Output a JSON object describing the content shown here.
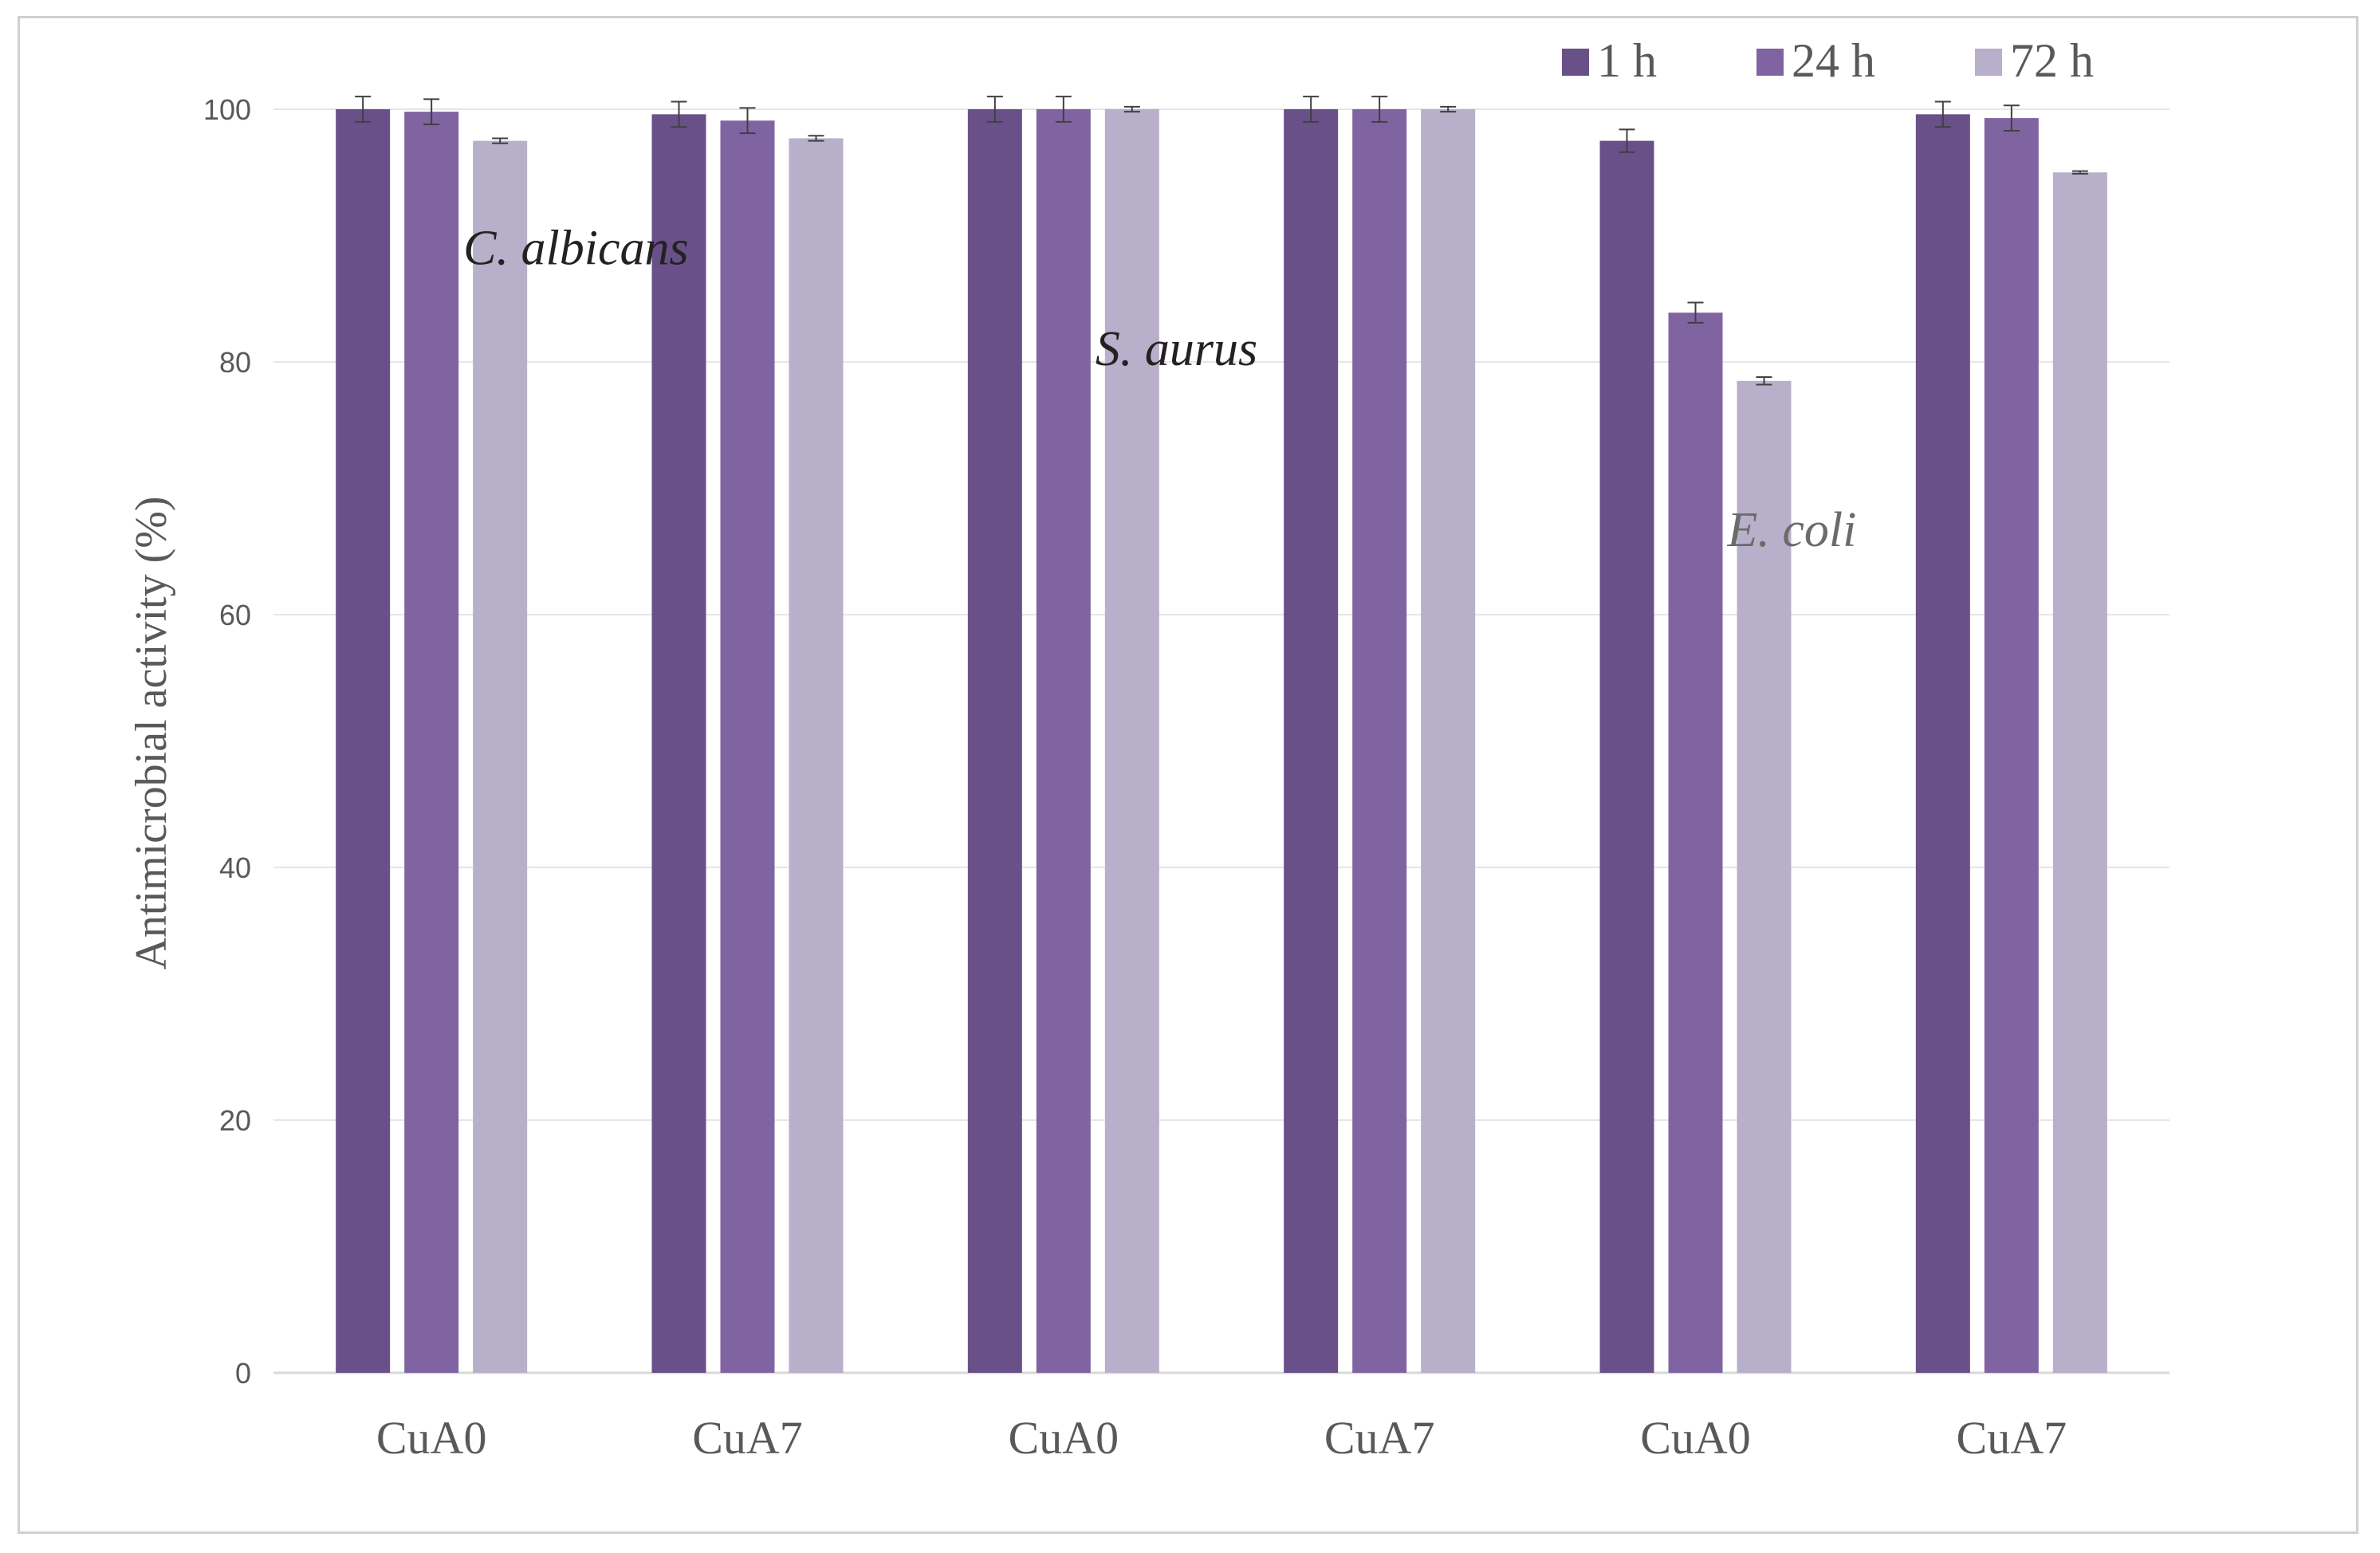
{
  "chart_data": {
    "type": "bar",
    "categories": [
      "CuA0",
      "CuA7",
      "CuA0",
      "CuA7",
      "CuA0",
      "CuA7"
    ],
    "series": [
      {
        "name": "1 h",
        "color": "#6a5088",
        "values": [
          100,
          99.6,
          100,
          100,
          97.5,
          99.6
        ],
        "errors": [
          1.0,
          1.0,
          1.0,
          1.0,
          0.9,
          1.0
        ]
      },
      {
        "name": "24 h",
        "color": "#8064a2",
        "values": [
          99.8,
          99.1,
          100,
          100,
          83.9,
          99.3
        ],
        "errors": [
          1.0,
          1.0,
          1.0,
          1.0,
          0.8,
          1.0
        ]
      },
      {
        "name": "72 h",
        "color": "#b8afca",
        "values": [
          97.5,
          97.7,
          100,
          100,
          78.5,
          95.0
        ],
        "errors": [
          0.2,
          0.2,
          0.2,
          0.2,
          0.3,
          0.1
        ]
      }
    ],
    "ylabel": "Antimicrobial activity (%)",
    "xlabel": "",
    "ylim": [
      0,
      100
    ],
    "yticks": [
      0,
      20,
      40,
      60,
      80,
      100
    ],
    "grid": true,
    "legend": "top-right",
    "annotations": [
      {
        "text": "C. albicans",
        "group": 0,
        "value": 89,
        "color": "#222222"
      },
      {
        "text": "S. aurus",
        "group": 2,
        "value": 81,
        "color": "#222222"
      },
      {
        "text": "E. coli",
        "group": 4,
        "value": 66.7,
        "color": "#6b6b6b"
      }
    ]
  }
}
